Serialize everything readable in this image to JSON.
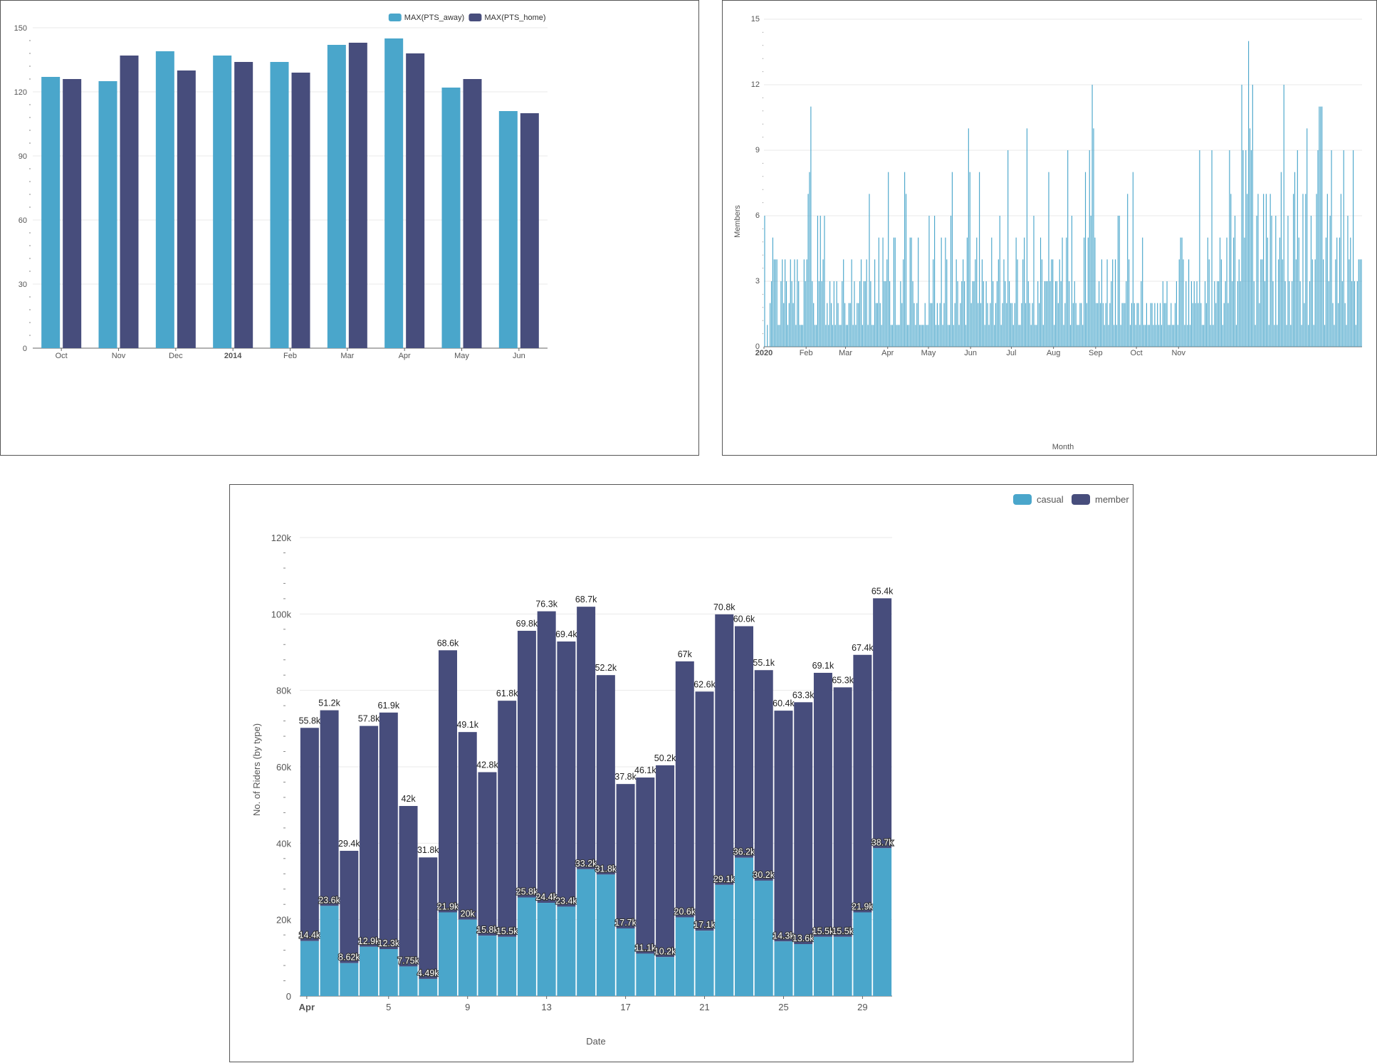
{
  "colors": {
    "casual_away": "#4aa6cb",
    "member_home": "#474d7c",
    "grid": "#e9e9e9",
    "axis": "#666666"
  },
  "chart_data": [
    {
      "type": "bar",
      "categories": [
        "Oct",
        "Nov",
        "Dec",
        "2014",
        "Feb",
        "Mar",
        "Apr",
        "May",
        "Jun"
      ],
      "bold_categories": [
        "2014"
      ],
      "series": [
        {
          "name": "MAX(PTS_away)",
          "color": "#4aa6cb",
          "values": [
            127,
            125,
            139,
            137,
            134,
            142,
            145,
            122,
            111
          ]
        },
        {
          "name": "MAX(PTS_home)",
          "color": "#474d7c",
          "values": [
            126,
            137,
            130,
            134,
            129,
            143,
            138,
            126,
            110
          ]
        }
      ],
      "yticks": [
        "0",
        "30",
        "60",
        "90",
        "120",
        "150"
      ],
      "ylim": [
        0,
        150
      ],
      "legend": "top-right",
      "grid": true
    },
    {
      "type": "bar",
      "ylabel": "Members",
      "xlabel": "Month",
      "ylim": [
        0,
        15
      ],
      "yticks": [
        "0",
        "3",
        "6",
        "9",
        "12",
        "15"
      ],
      "xticks": [
        "2020",
        "Feb",
        "Mar",
        "Apr",
        "May",
        "Jun",
        "Jul",
        "Aug",
        "Sep",
        "Oct",
        "Nov"
      ],
      "bold_xticks": [
        "2020"
      ],
      "color": "#4aa6cb",
      "grid": true,
      "values": [
        6,
        0,
        1,
        0,
        2,
        3,
        5,
        4,
        4,
        4,
        1,
        1,
        3,
        4,
        2,
        4,
        3,
        1,
        2,
        4,
        3,
        2,
        4,
        1,
        4,
        3,
        1,
        1,
        1,
        4,
        3,
        4,
        7,
        8,
        11,
        3,
        2,
        1,
        1,
        6,
        3,
        6,
        3,
        4,
        6,
        1,
        2,
        1,
        3,
        2,
        1,
        3,
        1,
        3,
        2,
        1,
        1,
        3,
        4,
        2,
        1,
        1,
        2,
        2,
        4,
        1,
        3,
        1,
        2,
        2,
        3,
        4,
        1,
        3,
        3,
        4,
        1,
        7,
        3,
        1,
        1,
        4,
        2,
        2,
        5,
        2,
        1,
        5,
        3,
        3,
        4,
        8,
        3,
        1,
        1,
        5,
        5,
        1,
        1,
        1,
        3,
        2,
        4,
        8,
        7,
        1,
        1,
        5,
        5,
        3,
        2,
        1,
        2,
        5,
        1,
        1,
        1,
        1,
        2,
        1,
        1,
        6,
        2,
        2,
        4,
        6,
        1,
        2,
        1,
        2,
        5,
        1,
        2,
        5,
        4,
        1,
        1,
        6,
        8,
        1,
        2,
        4,
        3,
        1,
        2,
        3,
        4,
        3,
        1,
        5,
        10,
        8,
        2,
        3,
        3,
        4,
        5,
        2,
        8,
        2,
        4,
        3,
        1,
        3,
        2,
        1,
        2,
        5,
        3,
        1,
        2,
        3,
        4,
        6,
        1,
        2,
        4,
        3,
        2,
        9,
        3,
        2,
        2,
        1,
        2,
        5,
        4,
        1,
        1,
        2,
        4,
        5,
        2,
        10,
        3,
        2,
        1,
        2,
        6,
        1,
        1,
        3,
        2,
        5,
        4,
        1,
        3,
        3,
        3,
        8,
        3,
        4,
        4,
        1,
        3,
        3,
        2,
        4,
        3,
        5,
        1,
        2,
        5,
        9,
        3,
        1,
        6,
        2,
        3,
        2,
        1,
        1,
        2,
        2,
        1,
        5,
        8,
        2,
        5,
        9,
        6,
        12,
        10,
        5,
        2,
        2,
        3,
        2,
        4,
        2,
        1,
        2,
        4,
        1,
        2,
        3,
        4,
        1,
        4,
        1,
        6,
        6,
        1,
        2,
        2,
        2,
        3,
        7,
        4,
        1,
        2,
        8,
        2,
        1,
        2,
        2,
        1,
        3,
        5,
        1,
        1,
        2,
        1,
        1,
        2,
        2,
        1,
        2,
        1,
        2,
        1,
        2,
        1,
        3,
        2,
        2,
        3,
        1,
        1,
        2,
        1,
        1,
        2,
        3,
        1,
        4,
        5,
        5,
        4,
        1,
        3,
        1,
        4,
        1,
        3,
        2,
        3,
        2,
        3,
        2,
        9,
        2,
        1,
        1,
        3,
        2,
        5,
        4,
        1,
        9,
        1,
        3,
        2,
        3,
        3,
        5,
        4,
        1,
        2,
        3,
        5,
        2,
        9,
        7,
        3,
        5,
        6,
        1,
        3,
        4,
        3,
        12,
        9,
        5,
        9,
        7,
        14,
        10,
        9,
        12,
        3,
        1,
        6,
        7,
        2,
        4,
        4,
        7,
        3,
        7,
        5,
        1,
        7,
        6,
        3,
        1,
        6,
        1,
        4,
        5,
        8,
        4,
        12,
        3,
        1,
        6,
        3,
        1,
        3,
        7,
        8,
        4,
        9,
        5,
        3,
        1,
        7,
        2,
        7,
        10,
        1,
        3,
        6,
        4,
        1,
        4,
        7,
        9,
        11,
        11,
        11,
        4,
        1,
        5,
        7,
        3,
        6,
        9,
        2,
        1,
        4,
        5,
        2,
        5,
        7,
        3,
        9,
        2,
        1,
        6,
        4,
        5,
        3,
        9,
        3,
        1,
        3,
        4,
        4,
        4
      ]
    },
    {
      "type": "bar",
      "stacked": true,
      "xlabel": "Date",
      "ylabel": "No. of Riders (by type)",
      "ylim": [
        0,
        120000
      ],
      "yticks": [
        "0",
        "20k",
        "40k",
        "60k",
        "80k",
        "100k",
        "120k"
      ],
      "xticks": [
        {
          "index": 0,
          "label": "Apr",
          "bold": true
        },
        {
          "index": 4,
          "label": "5"
        },
        {
          "index": 8,
          "label": "9"
        },
        {
          "index": 12,
          "label": "13"
        },
        {
          "index": 16,
          "label": "17"
        },
        {
          "index": 20,
          "label": "21"
        },
        {
          "index": 24,
          "label": "25"
        },
        {
          "index": 28,
          "label": "29"
        }
      ],
      "legend": "top-right",
      "grid": true,
      "series": [
        {
          "name": "casual",
          "color": "#4aa6cb",
          "values": [
            14400,
            23600,
            8620,
            12900,
            12300,
            7750,
            4490,
            21900,
            20000,
            15800,
            15500,
            25800,
            24400,
            23400,
            33200,
            31800,
            17700,
            11100,
            10200,
            20600,
            17100,
            29100,
            36200,
            30200,
            14300,
            13600,
            15500,
            15500,
            21900,
            38700
          ],
          "labels": [
            "14.4k",
            "23.6k",
            "8.62k",
            "12.9k",
            "12.3k",
            "7.75k",
            "4.49k",
            "21.9k",
            "20k",
            "15.8k",
            "15.5k",
            "25.8k",
            "24.4k",
            "23.4k",
            "33.2k",
            "31.8k",
            "17.7k",
            "11.1k",
            "10.2k",
            "20.6k",
            "17.1k",
            "29.1k",
            "36.2k",
            "30.2k",
            "14.3k",
            "13.6k",
            "15.5k",
            "15.5k",
            "21.9k",
            "38.7k"
          ]
        },
        {
          "name": "member",
          "color": "#474d7c",
          "values": [
            55800,
            51200,
            29400,
            57800,
            61900,
            42000,
            31800,
            68600,
            49100,
            42800,
            61800,
            69800,
            76300,
            69400,
            68700,
            52200,
            37800,
            46100,
            50200,
            67000,
            62600,
            70800,
            60600,
            55100,
            60400,
            63300,
            69100,
            65300,
            67400,
            65400
          ],
          "labels": [
            "55.8k",
            "51.2k",
            "29.4k",
            "57.8k",
            "61.9k",
            "42k",
            "31.8k",
            "68.6k",
            "49.1k",
            "42.8k",
            "61.8k",
            "69.8k",
            "76.3k",
            "69.4k",
            "68.7k",
            "52.2k",
            "37.8k",
            "46.1k",
            "50.2k",
            "67k",
            "62.6k",
            "70.8k",
            "60.6k",
            "55.1k",
            "60.4k",
            "63.3k",
            "69.1k",
            "65.3k",
            "67.4k",
            "65.4k"
          ]
        }
      ]
    }
  ]
}
